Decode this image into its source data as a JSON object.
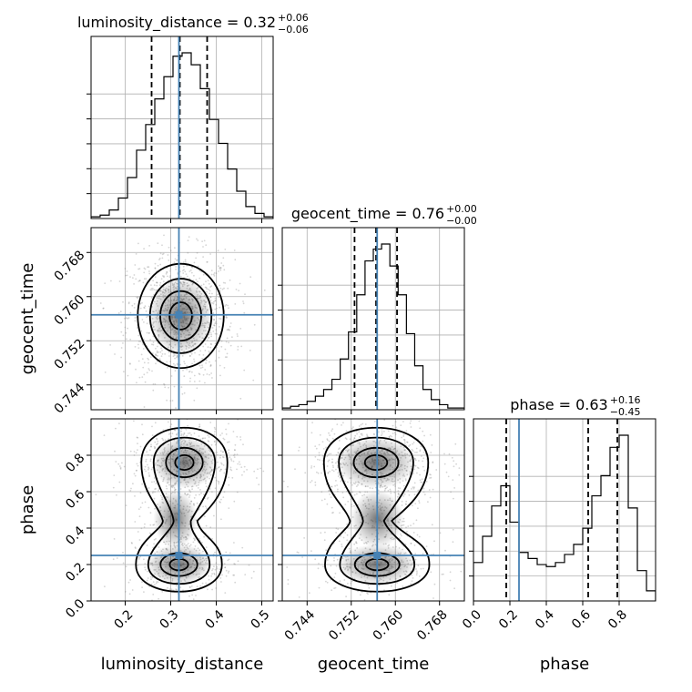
{
  "chart_data": {
    "type": "corner",
    "parameters": [
      "luminosity_distance",
      "geocent_time",
      "phase"
    ],
    "titles": {
      "luminosity_distance": {
        "name": "luminosity_distance",
        "median": "0.32",
        "plus": "+0.06",
        "minus": "−0.06"
      },
      "geocent_time": {
        "name": "geocent_time",
        "median": "0.76",
        "plus": "+0.00",
        "minus": "−0.00"
      },
      "phase": {
        "name": "phase",
        "median": "0.63",
        "plus": "+0.16",
        "minus": "−0.45"
      }
    },
    "ranges": {
      "luminosity_distance": [
        0.125,
        0.525
      ],
      "geocent_time": [
        0.7395,
        0.7725
      ],
      "phase": [
        0.0,
        1.0
      ]
    },
    "ticks": {
      "luminosity_distance": [
        0.2,
        0.3,
        0.4,
        0.5
      ],
      "geocent_time": [
        0.744,
        0.752,
        0.76,
        0.768
      ],
      "phase": [
        0.0,
        0.2,
        0.4,
        0.6,
        0.8
      ]
    },
    "tick_labels": {
      "luminosity_distance": [
        "0.2",
        "0.3",
        "0.4",
        "0.5"
      ],
      "geocent_time": [
        "0.744",
        "0.752",
        "0.760",
        "0.768"
      ],
      "phase": [
        "0.0",
        "0.2",
        "0.4",
        "0.6",
        "0.8"
      ]
    },
    "truths": {
      "luminosity_distance": 0.318,
      "geocent_time": 0.7567,
      "phase": 0.25
    },
    "quantiles": {
      "luminosity_distance": [
        0.258,
        0.32,
        0.38
      ],
      "geocent_time": [
        0.7526,
        0.7565,
        0.7603
      ],
      "phase": [
        0.18,
        0.63,
        0.79
      ]
    },
    "histograms": {
      "luminosity_distance": {
        "edges": [
          0.125,
          0.145,
          0.165,
          0.185,
          0.205,
          0.225,
          0.245,
          0.265,
          0.285,
          0.305,
          0.325,
          0.345,
          0.365,
          0.385,
          0.405,
          0.425,
          0.445,
          0.465,
          0.485,
          0.505,
          0.525
        ],
        "heights": [
          0.01,
          0.02,
          0.05,
          0.12,
          0.24,
          0.4,
          0.55,
          0.7,
          0.83,
          0.95,
          0.97,
          0.9,
          0.76,
          0.58,
          0.44,
          0.29,
          0.16,
          0.07,
          0.03,
          0.01
        ]
      },
      "geocent_time": {
        "edges": [
          0.7395,
          0.741,
          0.7425,
          0.744,
          0.7455,
          0.747,
          0.7485,
          0.75,
          0.7515,
          0.753,
          0.7545,
          0.756,
          0.7575,
          0.759,
          0.7605,
          0.762,
          0.7635,
          0.765,
          0.7665,
          0.768,
          0.7695,
          0.7725
        ],
        "heights": [
          0.01,
          0.02,
          0.03,
          0.05,
          0.08,
          0.12,
          0.18,
          0.3,
          0.46,
          0.68,
          0.88,
          0.95,
          0.98,
          0.85,
          0.68,
          0.45,
          0.26,
          0.12,
          0.06,
          0.03,
          0.01
        ]
      },
      "phase": {
        "edges": [
          0.0,
          0.05,
          0.1,
          0.15,
          0.2,
          0.25,
          0.3,
          0.35,
          0.4,
          0.45,
          0.5,
          0.55,
          0.6,
          0.65,
          0.7,
          0.75,
          0.8,
          0.85,
          0.9,
          0.95,
          1.0
        ],
        "heights": [
          0.19,
          0.32,
          0.47,
          0.57,
          0.39,
          0.24,
          0.21,
          0.18,
          0.17,
          0.19,
          0.23,
          0.28,
          0.36,
          0.52,
          0.62,
          0.76,
          0.82,
          0.46,
          0.15,
          0.05
        ]
      }
    },
    "contour_levels": 4,
    "grid": true
  }
}
